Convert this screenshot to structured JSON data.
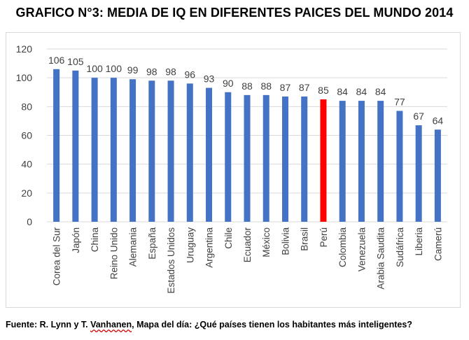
{
  "title": "GRAFICO N°3: MEDIA DE IQ EN DIFERENTES PAICES DEL MUNDO 2014",
  "source": {
    "prefix": "Fuente: R. Lynn y T. ",
    "author2": "Vanhanen",
    "suffix": ", Mapa del día: ¿Qué países tienen los habitantes más inteligentes?"
  },
  "chart_data": {
    "type": "bar",
    "title": "GRAFICO N°3: MEDIA DE IQ EN DIFERENTES PAICES DEL MUNDO 2014",
    "xlabel": "",
    "ylabel": "",
    "ylim": [
      0,
      120
    ],
    "yticks": [
      0,
      20,
      40,
      60,
      80,
      100,
      120
    ],
    "grid": true,
    "legend": "none",
    "categories": [
      "Corea del Sur",
      "Japón",
      "China",
      "Reino Unido",
      "Alemania",
      "España",
      "Estados Unidos",
      "Uruguay",
      "Argentina",
      "Chile",
      "Ecuador",
      "México",
      "Bolivia",
      "Brasil",
      "Perú",
      "Colombia",
      "Venezuela",
      "Arabia Saudita",
      "Sudáfrica",
      "Liberia",
      "Camerú"
    ],
    "values": [
      106,
      105,
      100,
      100,
      99,
      98,
      98,
      96,
      93,
      90,
      88,
      88,
      87,
      87,
      85,
      84,
      84,
      84,
      77,
      67,
      64
    ],
    "colors": {
      "bar": "#4472c4",
      "highlight": "#ff0000",
      "highlight_category": "Perú",
      "grid": "#d9d9d9",
      "text": "#404040"
    }
  }
}
